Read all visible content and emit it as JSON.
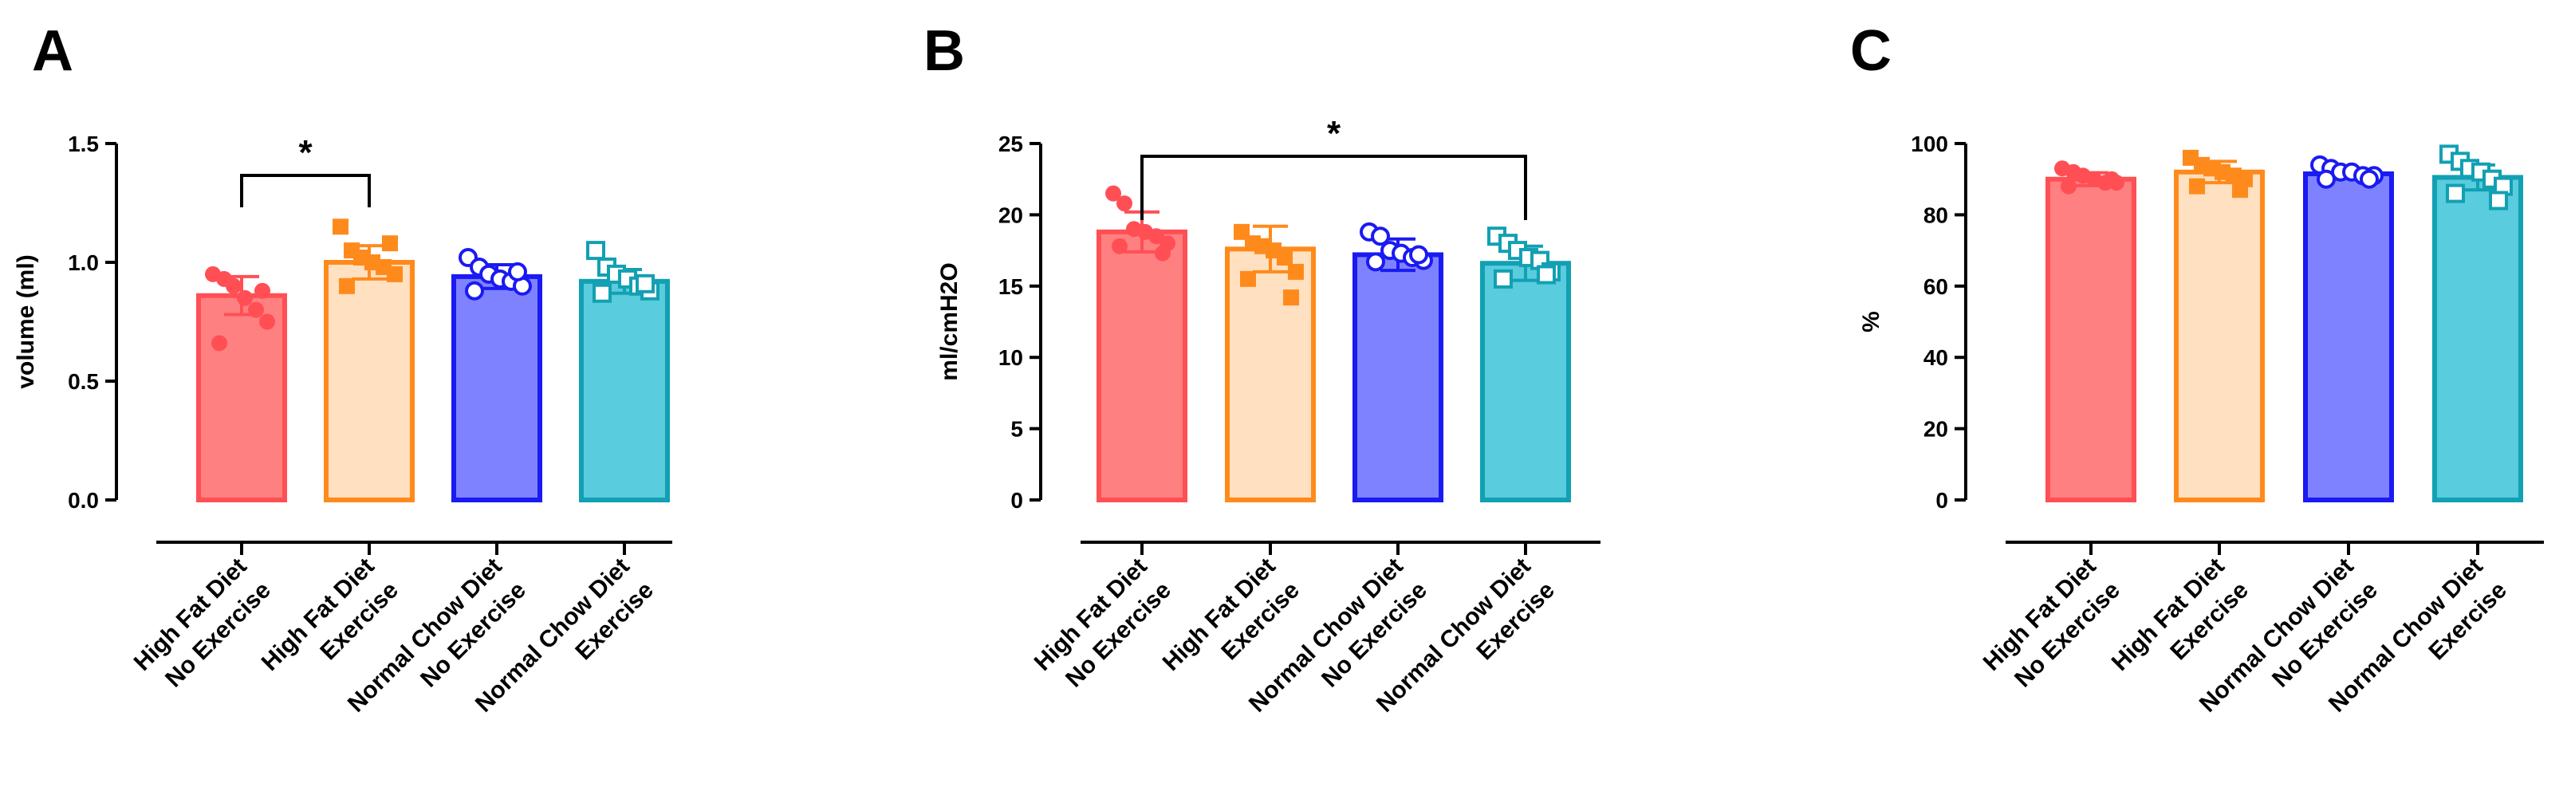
{
  "chart_data": [
    {
      "type": "bar",
      "panel": "A",
      "ylabel": "volume (ml)",
      "ylim": [
        0,
        1.5
      ],
      "yticks": [
        "0.0",
        "0.5",
        "1.0",
        "1.5"
      ],
      "ytick_values": [
        0,
        0.5,
        1.0,
        1.5
      ],
      "categories": [
        [
          "High Fat Diet",
          "No Exercise"
        ],
        [
          "High Fat Diet",
          "Exercise"
        ],
        [
          "Normal Chow Diet",
          "No Exercise"
        ],
        [
          "Normal Chow Diet",
          "Exercise"
        ]
      ],
      "values": [
        0.86,
        1.0,
        0.94,
        0.92
      ],
      "errors": [
        0.08,
        0.07,
        0.05,
        0.05
      ],
      "points": [
        [
          0.95,
          0.93,
          0.9,
          0.85,
          0.8,
          0.75,
          0.66,
          0.88
        ],
        [
          1.15,
          1.05,
          1.02,
          1.0,
          0.98,
          0.95,
          0.9,
          1.08
        ],
        [
          1.02,
          0.98,
          0.95,
          0.93,
          0.92,
          0.9,
          0.88,
          0.96
        ],
        [
          1.05,
          0.98,
          0.95,
          0.93,
          0.9,
          0.88,
          0.87,
          0.91
        ]
      ],
      "significance": [
        {
          "from": 0,
          "to": 1,
          "label": "*"
        }
      ]
    },
    {
      "type": "bar",
      "panel": "B",
      "ylabel": "ml/cmH2O",
      "ylim": [
        0,
        25
      ],
      "yticks": [
        "0",
        "5",
        "10",
        "15",
        "20",
        "25"
      ],
      "ytick_values": [
        0,
        5,
        10,
        15,
        20,
        25
      ],
      "categories": [
        [
          "High Fat Diet",
          "No Exercise"
        ],
        [
          "High Fat Diet",
          "Exercise"
        ],
        [
          "Normal Chow Diet",
          "No Exercise"
        ],
        [
          "Normal Chow Diet",
          "Exercise"
        ]
      ],
      "values": [
        18.8,
        17.6,
        17.2,
        16.6
      ],
      "errors": [
        1.4,
        1.6,
        1.1,
        1.2
      ],
      "points": [
        [
          21.5,
          20.8,
          19.0,
          18.8,
          18.5,
          18.0,
          17.8,
          17.3
        ],
        [
          18.8,
          18.0,
          17.8,
          17.5,
          17.0,
          16.0,
          15.5,
          14.2
        ],
        [
          18.8,
          18.5,
          17.5,
          17.3,
          17.0,
          16.8,
          16.7,
          17.2
        ],
        [
          18.5,
          18.0,
          17.5,
          17.0,
          16.8,
          16.0,
          15.5,
          15.8
        ]
      ],
      "significance": [
        {
          "from": 0,
          "to": 3,
          "label": "*"
        }
      ]
    },
    {
      "type": "bar",
      "panel": "C",
      "ylabel": "%",
      "ylim": [
        0,
        100
      ],
      "yticks": [
        "0",
        "20",
        "40",
        "60",
        "80",
        "100"
      ],
      "ytick_values": [
        0,
        20,
        40,
        60,
        80,
        100
      ],
      "categories": [
        [
          "High Fat Diet",
          "No Exercise"
        ],
        [
          "High Fat Diet",
          "Exercise"
        ],
        [
          "Normal Chow Diet",
          "No Exercise"
        ],
        [
          "Normal Chow Diet",
          "Exercise"
        ]
      ],
      "values": [
        90,
        92,
        91.5,
        90.5
      ],
      "errors": [
        1.8,
        3.0,
        1.2,
        3.5
      ],
      "points": [
        [
          93,
          92,
          91,
          90,
          89,
          89,
          88,
          90
        ],
        [
          96,
          94,
          93,
          92,
          91,
          90,
          88,
          87
        ],
        [
          94,
          93,
          92,
          92,
          91,
          91,
          90,
          90
        ],
        [
          97,
          95,
          93,
          92,
          90,
          88,
          86,
          84
        ]
      ],
      "significance": []
    }
  ],
  "series_style": [
    {
      "fill": "#ff8080",
      "stroke": "#ff4f55",
      "marker": "filled-circle"
    },
    {
      "fill": "#ffe0c0",
      "stroke": "#ff8a1c",
      "marker": "filled-square"
    },
    {
      "fill": "#7f82ff",
      "stroke": "#1a1af2",
      "marker": "open-circle"
    },
    {
      "fill": "#59ccdd",
      "stroke": "#12a0b3",
      "marker": "open-square"
    }
  ]
}
